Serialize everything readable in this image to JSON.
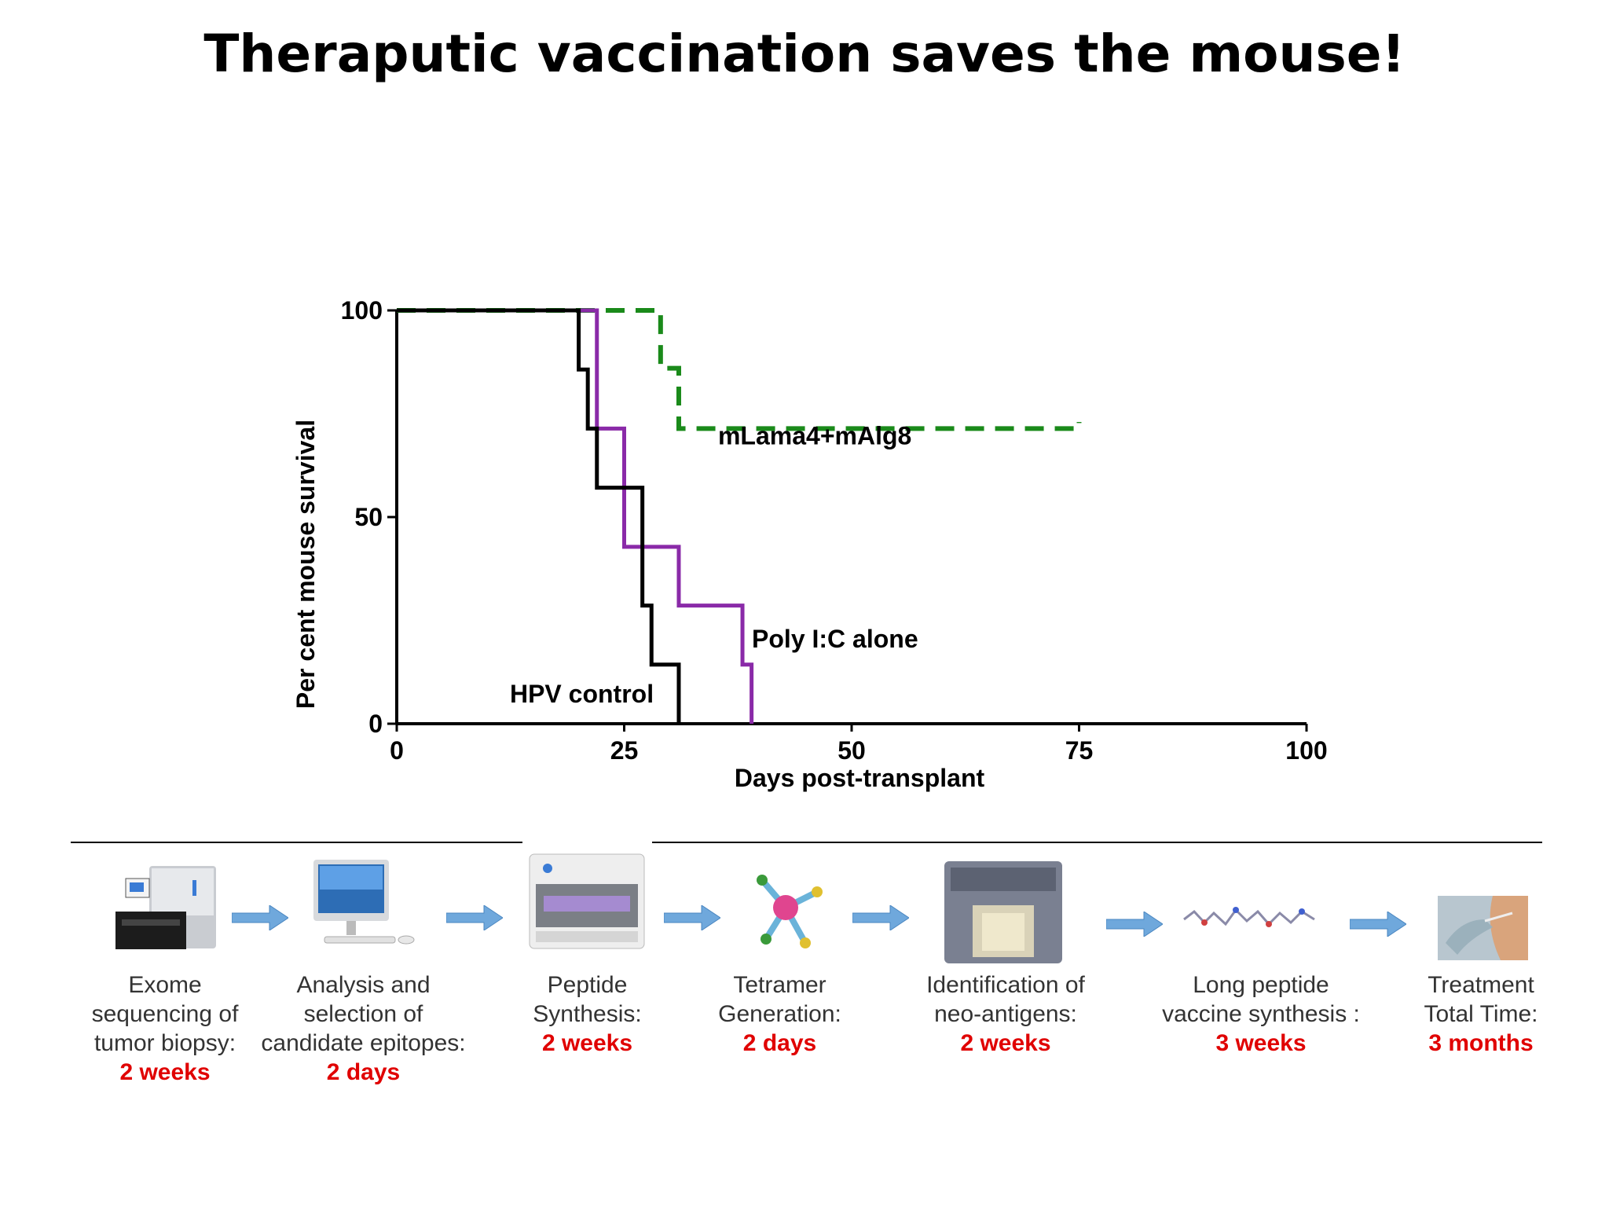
{
  "slide": {
    "title": "Theraputic vaccination saves the mouse!"
  },
  "chart_data": {
    "type": "line",
    "chart_subtype": "kaplan-meier step survival",
    "xlabel": "Days post-transplant",
    "ylabel": "Per cent mouse survival",
    "xlim": [
      0,
      100
    ],
    "ylim": [
      0,
      100
    ],
    "xticks": [
      0,
      25,
      50,
      75,
      100
    ],
    "yticks": [
      0,
      50,
      100
    ],
    "grid": false,
    "legend": "inline labels",
    "series": [
      {
        "name": "mLama4+mAlg8",
        "color": "#1a8a1a",
        "style": "dashed",
        "points": [
          [
            0,
            100
          ],
          [
            29,
            100
          ],
          [
            29,
            86
          ],
          [
            31,
            86
          ],
          [
            31,
            71.4
          ],
          [
            75,
            71.4
          ],
          [
            75,
            73
          ]
        ]
      },
      {
        "name": "Poly I:C alone",
        "color": "#8a2aa8",
        "style": "solid",
        "points": [
          [
            0,
            100
          ],
          [
            22,
            100
          ],
          [
            22,
            71.4
          ],
          [
            25,
            71.4
          ],
          [
            25,
            42.8
          ],
          [
            31,
            42.8
          ],
          [
            31,
            28.6
          ],
          [
            38,
            28.6
          ],
          [
            38,
            14.3
          ],
          [
            39,
            14.3
          ],
          [
            39,
            0
          ]
        ]
      },
      {
        "name": "HPV control",
        "color": "#000000",
        "style": "solid",
        "points": [
          [
            0,
            100
          ],
          [
            20,
            100
          ],
          [
            20,
            85.7
          ],
          [
            21,
            85.7
          ],
          [
            21,
            71.4
          ],
          [
            22,
            71.4
          ],
          [
            22,
            57.1
          ],
          [
            27,
            57.1
          ],
          [
            27,
            28.6
          ],
          [
            28,
            28.6
          ],
          [
            28,
            14.3
          ],
          [
            31,
            14.3
          ],
          [
            31,
            0
          ]
        ]
      }
    ]
  },
  "pipeline": {
    "steps": [
      {
        "lines": [
          "Exome",
          "sequencing of",
          "tumor biopsy:"
        ],
        "duration": "2 weeks",
        "icon": "sequencer-icon"
      },
      {
        "lines": [
          "Analysis and",
          "selection of",
          "candidate epitopes:"
        ],
        "duration": "2 days",
        "icon": "computer-icon"
      },
      {
        "lines": [
          "Peptide",
          "Synthesis:"
        ],
        "duration": "2 weeks",
        "icon": "peptide-synthesizer-icon"
      },
      {
        "lines": [
          "Tetramer",
          "Generation:"
        ],
        "duration": "2 days",
        "icon": "tetramer-icon"
      },
      {
        "lines": [
          "Identification of",
          "neo-antigens:"
        ],
        "duration": "2 weeks",
        "icon": "flow-cytometer-icon"
      },
      {
        "lines": [
          "Long peptide",
          "vaccine synthesis :"
        ],
        "duration": "3 weeks",
        "icon": "peptide-chain-icon"
      },
      {
        "lines": [
          "Treatment",
          "Total Time:"
        ],
        "duration": "3 months",
        "icon": "injection-icon"
      }
    ],
    "arrow_color": "#6fa8dc"
  }
}
